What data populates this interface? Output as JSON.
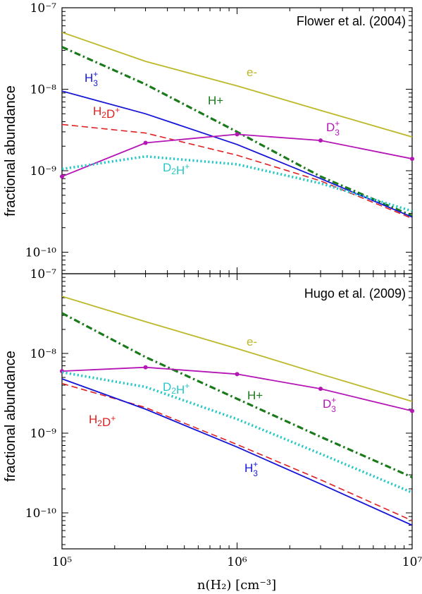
{
  "chart_data": [
    {
      "type": "line",
      "title": "Flower et al. (2004)",
      "ylabel": "fractional abundance",
      "xlabel": "n(H₂) [cm⁻³]",
      "xscale": "log",
      "yscale": "log",
      "xlim": [
        100000,
        10000000
      ],
      "ylim": [
        5e-11,
        1e-07
      ],
      "x_tick_labels": [
        "10⁵",
        "10⁶",
        "10⁷"
      ],
      "y_tick_labels": [
        "10⁻⁷",
        "10⁻⁸",
        "10⁻⁹",
        "10⁻¹⁰"
      ],
      "series": [
        {
          "name": "e-",
          "color": "#bcb828",
          "style": "solid",
          "markers": false,
          "x": [
            100000,
            300000,
            1000000,
            3000000,
            10000000
          ],
          "y": [
            5e-08,
            2.2e-08,
            1.1e-08,
            5.5e-09,
            2.6e-09
          ]
        },
        {
          "name": "H+",
          "color": "#1b7a1b",
          "style": "dashdot",
          "markers": false,
          "x": [
            100000,
            300000,
            1000000,
            3000000,
            10000000
          ],
          "y": [
            3.3e-08,
            1.15e-08,
            3e-09,
            8.5e-10,
            2.8e-10
          ]
        },
        {
          "name": "H₃⁺",
          "color": "#1515d8",
          "style": "solid",
          "markers": false,
          "x": [
            100000,
            300000,
            1000000,
            3000000,
            10000000
          ],
          "y": [
            9.5e-09,
            5e-09,
            2.1e-09,
            8e-10,
            2.7e-10
          ]
        },
        {
          "name": "H₂D⁺",
          "color": "#e02020",
          "style": "dashed",
          "markers": false,
          "x": [
            100000,
            300000,
            1000000,
            3000000,
            10000000
          ],
          "y": [
            3.7e-09,
            2.9e-09,
            1.55e-09,
            7.5e-10,
            2.6e-10
          ]
        },
        {
          "name": "D₃⁺",
          "color": "#b515b5",
          "style": "solid",
          "markers": true,
          "x": [
            100000,
            300000,
            1000000,
            3000000,
            10000000
          ],
          "y": [
            8.5e-10,
            2.2e-09,
            2.8e-09,
            2.35e-09,
            1.4e-09
          ]
        },
        {
          "name": "D₂H⁺",
          "color": "#28c8c8",
          "style": "dotted",
          "markers": false,
          "x": [
            100000,
            300000,
            1000000,
            3000000,
            10000000
          ],
          "y": [
            1.05e-09,
            1.5e-09,
            1.2e-09,
            7e-10,
            3.2e-10
          ]
        }
      ]
    },
    {
      "type": "line",
      "title": "Hugo et al. (2009)",
      "ylabel": "fractional abundance",
      "xlabel": "n(H₂) [cm⁻³]",
      "xscale": "log",
      "yscale": "log",
      "xlim": [
        100000,
        10000000
      ],
      "ylim": [
        5e-11,
        1e-07
      ],
      "x_tick_labels": [
        "10⁵",
        "10⁶",
        "10⁷"
      ],
      "y_tick_labels": [
        "10⁻⁷",
        "10⁻⁸",
        "10⁻⁹",
        "10⁻¹⁰"
      ],
      "series": [
        {
          "name": "e-",
          "color": "#bcb828",
          "style": "solid",
          "markers": false,
          "x": [
            100000,
            300000,
            1000000,
            3000000,
            10000000
          ],
          "y": [
            5.2e-08,
            2.5e-08,
            1.15e-08,
            5.5e-09,
            2.5e-09
          ]
        },
        {
          "name": "H+",
          "color": "#1b7a1b",
          "style": "dashdot",
          "markers": false,
          "x": [
            100000,
            300000,
            1000000,
            3000000,
            10000000
          ],
          "y": [
            3.2e-08,
            9e-09,
            2.7e-09,
            9e-10,
            2.8e-10
          ]
        },
        {
          "name": "D₃⁺",
          "color": "#b515b5",
          "style": "solid",
          "markers": true,
          "x": [
            100000,
            300000,
            1000000,
            3000000,
            10000000
          ],
          "y": [
            6e-09,
            6.7e-09,
            5.5e-09,
            3.6e-09,
            1.9e-09
          ]
        },
        {
          "name": "D₂H⁺",
          "color": "#28c8c8",
          "style": "dotted",
          "markers": false,
          "x": [
            100000,
            300000,
            1000000,
            3000000,
            10000000
          ],
          "y": [
            5.8e-09,
            3.8e-09,
            1.5e-09,
            5.5e-10,
            1.8e-10
          ]
        },
        {
          "name": "H₂D⁺",
          "color": "#e02020",
          "style": "dashed",
          "markers": false,
          "x": [
            100000,
            300000,
            1000000,
            3000000,
            10000000
          ],
          "y": [
            4.2e-09,
            2.1e-09,
            7.2e-10,
            2.6e-10,
            8e-11
          ]
        },
        {
          "name": "H₃⁺",
          "color": "#1515d8",
          "style": "solid",
          "markers": false,
          "x": [
            100000,
            300000,
            1000000,
            3000000,
            10000000
          ],
          "y": [
            4.8e-09,
            2e-09,
            6.7e-10,
            2.3e-10,
            7e-11
          ]
        }
      ]
    }
  ]
}
